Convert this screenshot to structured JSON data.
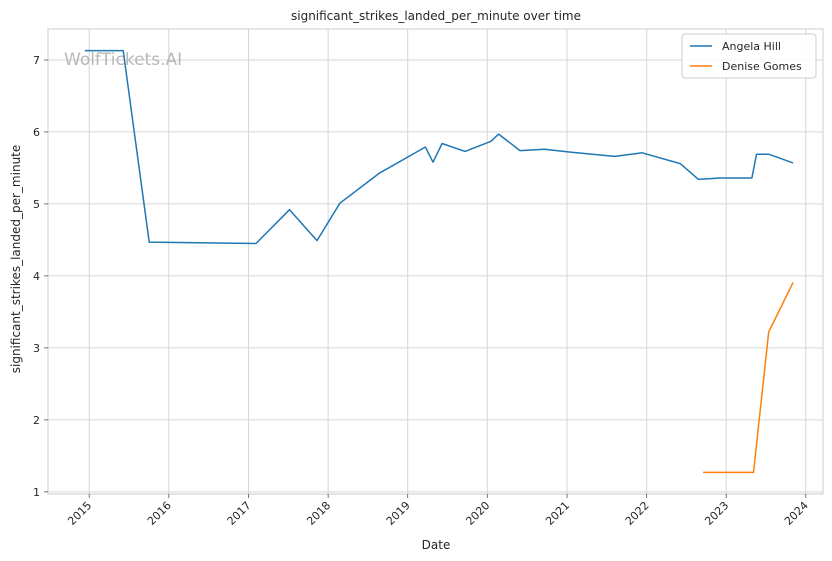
{
  "chart_data": {
    "type": "line",
    "title": "significant_strikes_landed_per_minute over time",
    "xlabel": "Date",
    "ylabel": "significant_strikes_landed_per_minute",
    "xlim": [
      "2014-06-26",
      "2024-03-20"
    ],
    "ylim": [
      0.97,
      7.43
    ],
    "x_ticks": [
      "2015",
      "2016",
      "2017",
      "2018",
      "2019",
      "2020",
      "2021",
      "2022",
      "2023",
      "2024"
    ],
    "y_ticks": [
      1,
      2,
      3,
      4,
      5,
      6,
      7
    ],
    "grid": true,
    "legend_position": "top-right",
    "watermark": "WolfTickets.AI",
    "series": [
      {
        "name": "Angela Hill",
        "color": "#1f77b4",
        "points": [
          [
            "2014-12-12",
            7.13
          ],
          [
            "2015-06-06",
            7.13
          ],
          [
            "2015-10-03",
            4.47
          ],
          [
            "2017-02-04",
            4.45
          ],
          [
            "2017-07-08",
            4.92
          ],
          [
            "2017-11-11",
            4.49
          ],
          [
            "2018-02-24",
            5.01
          ],
          [
            "2018-08-25",
            5.43
          ],
          [
            "2019-03-23",
            5.79
          ],
          [
            "2019-04-27",
            5.58
          ],
          [
            "2019-06-08",
            5.84
          ],
          [
            "2019-09-21",
            5.73
          ],
          [
            "2020-01-18",
            5.87
          ],
          [
            "2020-02-22",
            5.97
          ],
          [
            "2020-05-30",
            5.74
          ],
          [
            "2020-09-19",
            5.76
          ],
          [
            "2021-01-16",
            5.72
          ],
          [
            "2021-08-07",
            5.66
          ],
          [
            "2021-12-11",
            5.71
          ],
          [
            "2022-06-04",
            5.56
          ],
          [
            "2022-08-27",
            5.34
          ],
          [
            "2022-12-03",
            5.36
          ],
          [
            "2023-04-29",
            5.36
          ],
          [
            "2023-05-20",
            5.69
          ],
          [
            "2023-07-15",
            5.69
          ],
          [
            "2023-11-04",
            5.57
          ]
        ]
      },
      {
        "name": "Denise Gomes",
        "color": "#ff7f0e",
        "points": [
          [
            "2022-09-17",
            1.27
          ],
          [
            "2023-05-06",
            1.27
          ],
          [
            "2023-07-15",
            3.22
          ],
          [
            "2023-11-04",
            3.91
          ]
        ]
      }
    ]
  }
}
